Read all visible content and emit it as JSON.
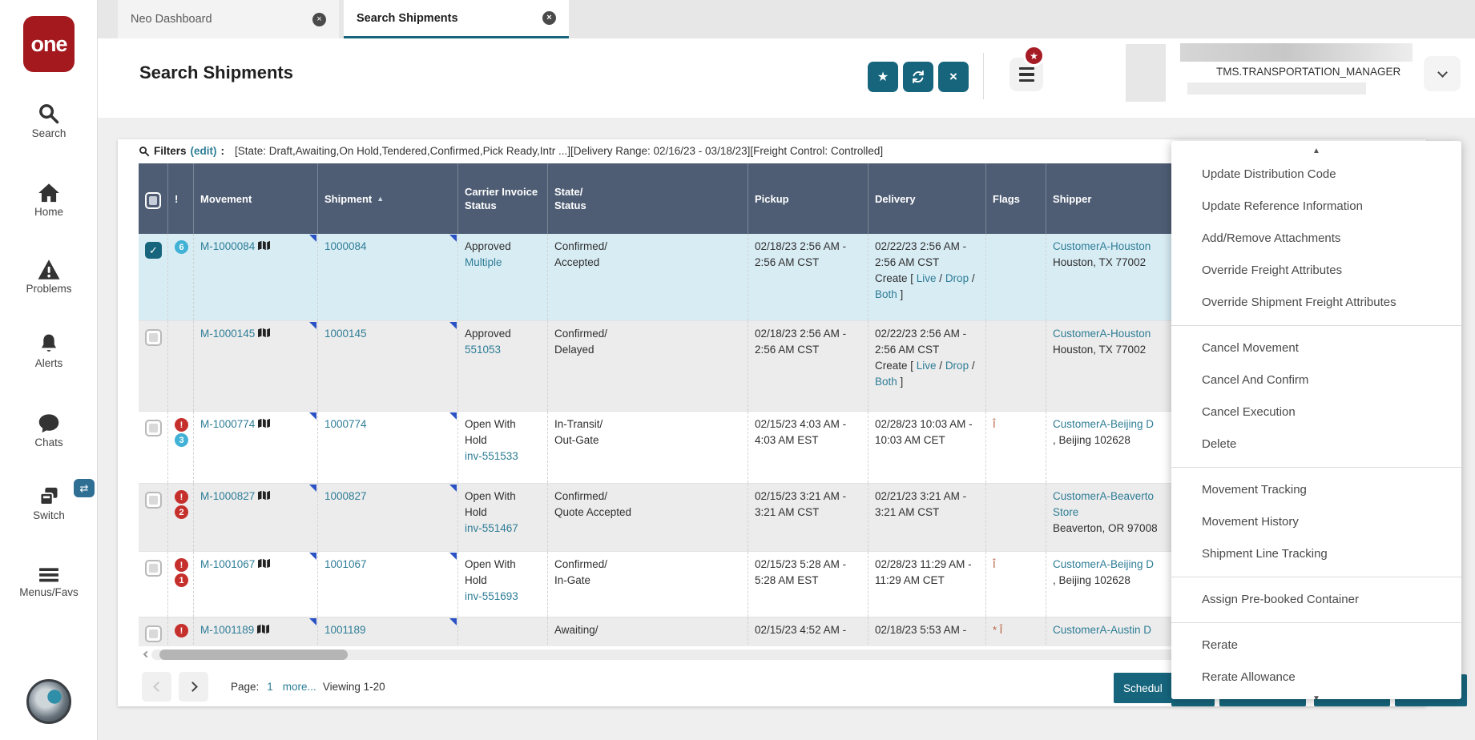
{
  "brand": {
    "logo_text": "one"
  },
  "sidebar": {
    "items": [
      {
        "label": "Search"
      },
      {
        "label": "Home"
      },
      {
        "label": "Problems"
      },
      {
        "label": "Alerts"
      },
      {
        "label": "Chats"
      },
      {
        "label": "Switch"
      },
      {
        "label": "Menus/Favs"
      }
    ]
  },
  "tabs": [
    {
      "label": "Neo Dashboard",
      "active": false
    },
    {
      "label": "Search Shipments",
      "active": true
    }
  ],
  "header": {
    "title": "Search Shipments",
    "role": "TMS.TRANSPORTATION_MANAGER"
  },
  "filters": {
    "label": "Filters",
    "edit_link": "(edit)",
    "colon": ":",
    "summary": "[State: Draft,Awaiting,On Hold,Tendered,Confirmed,Pick Ready,Intr ...][Delivery Range: 02/16/23 - 03/18/23][Freight Control: Controlled]"
  },
  "table": {
    "columns": [
      "",
      "!",
      "Movement",
      "Shipment",
      "Carrier Invoice Status",
      "State/\nStatus",
      "Pickup",
      "Delivery",
      "Flags",
      "Shipper"
    ],
    "sort": {
      "column": "Shipment",
      "direction": "asc"
    },
    "rows": [
      {
        "selected": true,
        "checked": true,
        "badges": [
          {
            "text": "6",
            "color": "blue"
          }
        ],
        "movement": "M-1000084",
        "shipment": "1000084",
        "invoice_status": "Approved",
        "invoice_link": "Multiple",
        "state_lines": [
          "Confirmed/",
          "Accepted"
        ],
        "pickup_lines": [
          "02/18/23 2:56 AM -",
          "2:56 AM CST"
        ],
        "delivery_lines": [
          "02/22/23 2:56 AM -",
          "2:56 AM CST"
        ],
        "delivery_create": {
          "prefix": "Create [",
          "links": [
            "Live",
            "Drop",
            "Both"
          ],
          "suffix": "]"
        },
        "flags": "",
        "shipper_link_lines": [
          "CustomerA-Houston"
        ],
        "shipper_address_lines": [
          "Houston, TX 77002"
        ]
      },
      {
        "selected": false,
        "checked": false,
        "badges": [],
        "movement": "M-1000145",
        "shipment": "1000145",
        "invoice_status": "Approved",
        "invoice_link": "551053",
        "state_lines": [
          "Confirmed/",
          "Delayed"
        ],
        "pickup_lines": [
          "02/18/23 2:56 AM -",
          "2:56 AM CST"
        ],
        "delivery_lines": [
          "02/22/23 2:56 AM -",
          "2:56 AM CST"
        ],
        "delivery_create": {
          "prefix": "Create [",
          "links": [
            "Live",
            "Drop",
            "Both"
          ],
          "suffix": "]"
        },
        "flags": "",
        "shipper_link_lines": [
          "CustomerA-Houston"
        ],
        "shipper_address_lines": [
          "Houston, TX 77002"
        ]
      },
      {
        "selected": false,
        "checked": false,
        "badges": [
          {
            "text": "!",
            "color": "red"
          },
          {
            "text": "3",
            "color": "blue"
          }
        ],
        "movement": "M-1000774",
        "shipment": "1000774",
        "invoice_status": "Open With Hold",
        "invoice_link": "inv-551533",
        "state_lines": [
          "In-Transit/",
          "Out-Gate"
        ],
        "pickup_lines": [
          "02/15/23 4:03 AM -",
          "4:03 AM EST"
        ],
        "delivery_lines": [
          "02/28/23 10:03 AM -",
          "10:03 AM CET"
        ],
        "delivery_create": null,
        "flags": "Î",
        "shipper_link_lines": [
          "CustomerA-Beijing D"
        ],
        "shipper_address_lines": [
          ", Beijing 102628"
        ]
      },
      {
        "selected": false,
        "checked": false,
        "badges": [
          {
            "text": "!",
            "color": "red"
          },
          {
            "text": "2",
            "color": "red"
          }
        ],
        "movement": "M-1000827",
        "shipment": "1000827",
        "invoice_status": "Open With Hold",
        "invoice_link": "inv-551467",
        "state_lines": [
          "Confirmed/",
          "Quote Accepted"
        ],
        "pickup_lines": [
          "02/15/23 3:21 AM -",
          "3:21 AM CST"
        ],
        "delivery_lines": [
          "02/21/23 3:21 AM -",
          "3:21 AM CST"
        ],
        "delivery_create": null,
        "flags": "",
        "shipper_link_lines": [
          "CustomerA-Beaverto",
          "Store"
        ],
        "shipper_address_lines": [
          "Beaverton, OR 97008"
        ]
      },
      {
        "selected": false,
        "checked": false,
        "badges": [
          {
            "text": "!",
            "color": "red"
          },
          {
            "text": "1",
            "color": "red"
          }
        ],
        "movement": "M-1001067",
        "shipment": "1001067",
        "invoice_status": "Open With Hold",
        "invoice_link": "inv-551693",
        "state_lines": [
          "Confirmed/",
          "In-Gate"
        ],
        "pickup_lines": [
          "02/15/23 5:28 AM -",
          "5:28 AM EST"
        ],
        "delivery_lines": [
          "02/28/23 11:29 AM -",
          "11:29 AM CET"
        ],
        "delivery_create": null,
        "flags": "Î",
        "shipper_link_lines": [
          "CustomerA-Beijing D"
        ],
        "shipper_address_lines": [
          ", Beijing 102628"
        ]
      },
      {
        "selected": false,
        "checked": false,
        "badges": [
          {
            "text": "!",
            "color": "red"
          }
        ],
        "movement": "M-1001189",
        "shipment": "1001189",
        "invoice_status": "",
        "invoice_link": "",
        "state_lines": [
          "Awaiting/"
        ],
        "pickup_lines": [
          "02/15/23 4:52 AM -"
        ],
        "delivery_lines": [
          "02/18/23 5:53 AM -"
        ],
        "delivery_create": null,
        "flags": "* Î",
        "shipper_link_lines": [
          "CustomerA-Austin D"
        ],
        "shipper_address_lines": []
      }
    ]
  },
  "pagination": {
    "label": "Page:",
    "page": "1",
    "more_link": "more...",
    "viewing": "Viewing 1-20"
  },
  "actions": {
    "schedule": "Schedul"
  },
  "menu": {
    "groups": [
      [
        "Update Distribution Code",
        "Update Reference Information",
        "Add/Remove Attachments",
        "Override Freight Attributes",
        "Override Shipment Freight Attributes"
      ],
      [
        "Cancel Movement",
        "Cancel And Confirm",
        "Cancel Execution",
        "Delete"
      ],
      [
        "Movement Tracking",
        "Movement History",
        "Shipment Line Tracking"
      ],
      [
        "Assign Pre-booked Container"
      ],
      [
        "Rerate",
        "Rerate Allowance"
      ]
    ]
  },
  "colors": {
    "teal": "#16657d",
    "link": "#2e7d96",
    "table_header": "#4e5d74",
    "selected_row": "#d8ecf4",
    "badge_red": "#c5302c",
    "badge_blue": "#41b1d5",
    "logo_red": "#a3191e",
    "flag_glyph": "#b35f3f"
  }
}
